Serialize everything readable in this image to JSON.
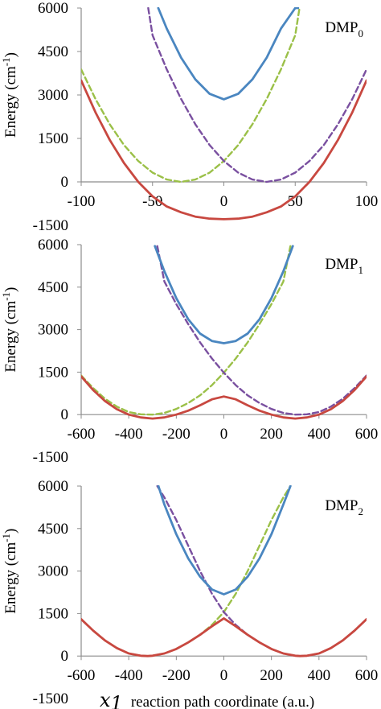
{
  "xlabel_symbol": "x",
  "xlabel_subscript": "1",
  "xlabel_text": "reaction path coordinate (a.u.)",
  "colors": {
    "upper_adiabatic": "#4a86c0",
    "lower_adiabatic": "#c84840",
    "diabatic_left": "#9bc048",
    "diabatic_right": "#7a50a0",
    "axis": "#8c8c8c"
  },
  "chart_data": [
    {
      "type": "line",
      "title": "DMP",
      "title_subscript": "0",
      "xlim": [
        -100,
        100
      ],
      "xticks": [
        -100,
        -50,
        0,
        50,
        100
      ],
      "ylim": [
        -1500,
        6000
      ],
      "yticks": [
        -1500,
        0,
        1500,
        3000,
        4500,
        6000
      ],
      "ylabel": "Energy (cm",
      "ylabel_sup": "-1",
      "ylabel_tail": ")",
      "grid": false,
      "series": [
        {
          "role": "upper",
          "style": "solid",
          "color": "#4a86c0",
          "x": [
            -46,
            -40,
            -30,
            -20,
            -10,
            0,
            10,
            20,
            30,
            40,
            50,
            52
          ],
          "y": [
            6000,
            5290,
            4290,
            3540,
            3040,
            2850,
            3040,
            3540,
            4290,
            5290,
            6000,
            6000
          ]
        },
        {
          "role": "lower",
          "style": "solid",
          "color": "#c84840",
          "x": [
            -100,
            -90,
            -80,
            -70,
            -60,
            -50,
            -40,
            -30,
            -20,
            -10,
            0,
            10,
            20,
            30,
            40,
            50,
            60,
            70,
            80,
            90,
            100
          ],
          "y": [
            3500,
            2400,
            1450,
            650,
            0,
            -500,
            -850,
            -1050,
            -1200,
            -1270,
            -1290,
            -1270,
            -1200,
            -1050,
            -850,
            -500,
            0,
            650,
            1450,
            2400,
            3500
          ]
        },
        {
          "role": "diabatic-left",
          "style": "dashed",
          "color": "#9bc048",
          "x": [
            -100,
            -90,
            -80,
            -70,
            -60,
            -50,
            -40,
            -30,
            -20,
            -10,
            0,
            10,
            20,
            30,
            40,
            50,
            53
          ],
          "y": [
            3880,
            2860,
            1990,
            1270,
            720,
            320,
            80,
            0,
            80,
            320,
            720,
            1270,
            1990,
            2860,
            3880,
            5060,
            6000
          ]
        },
        {
          "role": "diabatic-right",
          "style": "dashed",
          "color": "#7a50a0",
          "x": [
            -53,
            -50,
            -40,
            -30,
            -20,
            -10,
            0,
            10,
            20,
            30,
            40,
            50,
            60,
            70,
            80,
            90,
            100
          ],
          "y": [
            6000,
            5060,
            3880,
            2860,
            1990,
            1270,
            720,
            320,
            80,
            0,
            80,
            320,
            720,
            1270,
            1990,
            2860,
            3880
          ]
        }
      ]
    },
    {
      "type": "line",
      "title": "DMP",
      "title_subscript": "1",
      "xlim": [
        -600,
        600
      ],
      "xticks": [
        -600,
        -400,
        -200,
        0,
        200,
        400,
        600
      ],
      "ylim": [
        -1500,
        6000
      ],
      "yticks": [
        -1500,
        0,
        1500,
        3000,
        4500,
        6000
      ],
      "ylabel": "Energy (cm",
      "ylabel_sup": "-1",
      "ylabel_tail": ")",
      "grid": false,
      "series": [
        {
          "role": "upper",
          "style": "solid",
          "color": "#4a86c0",
          "x": [
            -290,
            -250,
            -200,
            -150,
            -100,
            -50,
            0,
            50,
            100,
            150,
            200,
            250,
            290
          ],
          "y": [
            5950,
            5060,
            4110,
            3370,
            2860,
            2600,
            2520,
            2600,
            2860,
            3370,
            4110,
            5060,
            5950
          ]
        },
        {
          "role": "lower",
          "style": "solid",
          "color": "#c84840",
          "x": [
            -600,
            -550,
            -500,
            -450,
            -400,
            -350,
            -300,
            -250,
            -200,
            -150,
            -100,
            -50,
            0,
            50,
            100,
            150,
            200,
            250,
            300,
            350,
            400,
            450,
            500,
            550,
            600
          ],
          "y": [
            1350,
            870,
            480,
            190,
            0,
            -100,
            -140,
            -100,
            0,
            140,
            330,
            540,
            640,
            540,
            330,
            140,
            0,
            -100,
            -140,
            -100,
            0,
            190,
            480,
            870,
            1350
          ]
        },
        {
          "role": "diabatic-left",
          "style": "dashed",
          "color": "#9bc048",
          "x": [
            -600,
            -550,
            -500,
            -450,
            -400,
            -350,
            -300,
            -250,
            -200,
            -150,
            -100,
            -50,
            0,
            50,
            100,
            150,
            200,
            250,
            280
          ],
          "y": [
            1380,
            940,
            560,
            280,
            90,
            10,
            0,
            60,
            200,
            410,
            680,
            1040,
            1480,
            1980,
            2550,
            3200,
            3900,
            4700,
            5950
          ]
        },
        {
          "role": "diabatic-right",
          "style": "dashed",
          "color": "#7a50a0",
          "x": [
            -280,
            -250,
            -200,
            -150,
            -100,
            -50,
            0,
            50,
            100,
            150,
            200,
            250,
            300,
            350,
            400,
            450,
            500,
            550,
            600
          ],
          "y": [
            5950,
            4700,
            3900,
            3200,
            2550,
            1980,
            1480,
            1040,
            680,
            410,
            200,
            60,
            0,
            10,
            90,
            280,
            560,
            940,
            1380
          ]
        }
      ]
    },
    {
      "type": "line",
      "title": "DMP",
      "title_subscript": "2",
      "xlim": [
        -600,
        600
      ],
      "xticks": [
        -600,
        -400,
        -200,
        0,
        200,
        400,
        600
      ],
      "ylim": [
        -1500,
        6000
      ],
      "yticks": [
        -1500,
        0,
        1500,
        3000,
        4500,
        6000
      ],
      "ylabel": "Energy (cm",
      "ylabel_sup": "-1",
      "ylabel_tail": ")",
      "grid": false,
      "series": [
        {
          "role": "upper",
          "style": "solid",
          "color": "#4a86c0",
          "x": [
            -275,
            -250,
            -200,
            -150,
            -100,
            -50,
            0,
            50,
            100,
            150,
            200,
            250,
            280
          ],
          "y": [
            6000,
            5350,
            4300,
            3450,
            2800,
            2350,
            2180,
            2350,
            2800,
            3450,
            4300,
            5350,
            6000
          ]
        },
        {
          "role": "lower",
          "style": "solid",
          "color": "#c84840",
          "x": [
            -600,
            -550,
            -500,
            -450,
            -400,
            -350,
            -320,
            -300,
            -250,
            -200,
            -150,
            -100,
            -50,
            0,
            50,
            100,
            150,
            200,
            250,
            300,
            320,
            350,
            400,
            450,
            500,
            550,
            600
          ],
          "y": [
            1300,
            900,
            550,
            280,
            90,
            10,
            0,
            10,
            90,
            250,
            480,
            750,
            1050,
            1330,
            1050,
            750,
            480,
            250,
            90,
            10,
            0,
            10,
            90,
            280,
            550,
            900,
            1300
          ]
        },
        {
          "role": "diabatic-left",
          "style": "dashed",
          "color": "#9bc048",
          "x": [
            -600,
            -550,
            -500,
            -450,
            -400,
            -350,
            -320,
            -300,
            -250,
            -200,
            -150,
            -100,
            -50,
            0,
            50,
            100,
            150,
            200,
            250,
            280
          ],
          "y": [
            1300,
            900,
            550,
            280,
            90,
            10,
            0,
            10,
            90,
            250,
            480,
            750,
            1100,
            1550,
            2200,
            3000,
            3900,
            4800,
            5600,
            6000
          ]
        },
        {
          "role": "diabatic-right",
          "style": "dashed",
          "color": "#7a50a0",
          "x": [
            -280,
            -250,
            -200,
            -150,
            -100,
            -50,
            0,
            50,
            100,
            150,
            200,
            250,
            300,
            320,
            350,
            400,
            450,
            500,
            550,
            600
          ],
          "y": [
            6000,
            5600,
            4800,
            3900,
            3000,
            2200,
            1550,
            1100,
            750,
            480,
            250,
            90,
            10,
            0,
            10,
            90,
            280,
            550,
            900,
            1300
          ]
        }
      ]
    }
  ]
}
